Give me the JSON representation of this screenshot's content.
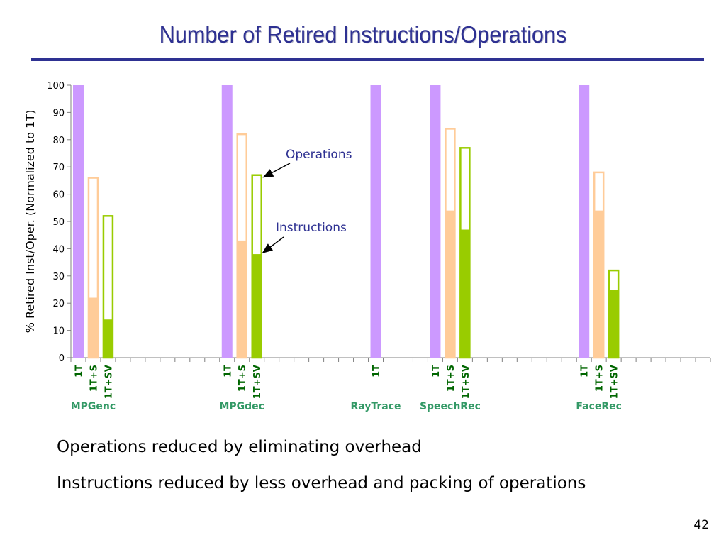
{
  "slide": {
    "title": "Number of Retired Instructions/Operations",
    "bullets": [
      "Operations reduced by eliminating overhead",
      "Instructions reduced by less overhead and packing of operations"
    ],
    "page_number": "42"
  },
  "colors": {
    "title": "#2e3192",
    "one_t": "#cc99ff",
    "one_t_s": "#ffcc99",
    "one_t_sv": "#99cc00",
    "benchmark_label": "#339966",
    "bar_label": "#006600",
    "annotation": "#2e3192"
  },
  "chart_data": {
    "type": "bar",
    "title": "",
    "xlabel": "",
    "ylabel": "% Retired Inst/Oper. (Normalized to 1T)",
    "ylim": [
      0,
      100
    ],
    "yticks": [
      0,
      10,
      20,
      30,
      40,
      50,
      60,
      70,
      80,
      90,
      100
    ],
    "grid": false,
    "annotations": [
      "Operations",
      "Instructions"
    ],
    "groups": [
      {
        "name": "MPGenc",
        "bars": [
          {
            "label": "1T",
            "operations": 100,
            "instructions": 100
          },
          {
            "label": "1T+S",
            "operations": 66,
            "instructions": 22
          },
          {
            "label": "1T+SV",
            "operations": 52,
            "instructions": 14
          }
        ]
      },
      {
        "name": "MPGdec",
        "bars": [
          {
            "label": "1T",
            "operations": 100,
            "instructions": 100
          },
          {
            "label": "1T+S",
            "operations": 82,
            "instructions": 43
          },
          {
            "label": "1T+SV",
            "operations": 67,
            "instructions": 38
          }
        ]
      },
      {
        "name": "RayTrace",
        "bars": [
          {
            "label": "1T",
            "operations": 100,
            "instructions": 100
          }
        ]
      },
      {
        "name": "SpeechRec",
        "bars": [
          {
            "label": "1T",
            "operations": 100,
            "instructions": 100
          },
          {
            "label": "1T+S",
            "operations": 84,
            "instructions": 54
          },
          {
            "label": "1T+SV",
            "operations": 77,
            "instructions": 47
          }
        ]
      },
      {
        "name": "FaceRec",
        "bars": [
          {
            "label": "1T",
            "operations": 100,
            "instructions": 100
          },
          {
            "label": "1T+S",
            "operations": 68,
            "instructions": 54
          },
          {
            "label": "1T+SV",
            "operations": 32,
            "instructions": 25
          }
        ]
      }
    ]
  }
}
